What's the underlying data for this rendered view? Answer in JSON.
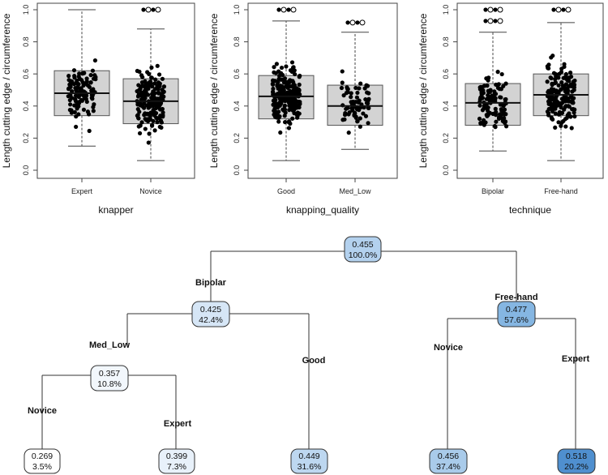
{
  "chart_data": [
    {
      "type": "boxplot",
      "id": "knapper",
      "xlabel": "knapper",
      "ylabel": "Length cutting edge / circumference",
      "ylim": [
        0,
        1
      ],
      "yticks": [
        "0.0",
        "0.2",
        "0.4",
        "0.6",
        "0.8",
        "1.0"
      ],
      "categories": [
        "Expert",
        "Novice"
      ],
      "boxes": [
        {
          "name": "Expert",
          "min": 0.15,
          "q1": 0.34,
          "median": 0.48,
          "q3": 0.62,
          "max": 1.0,
          "outliers": [],
          "n": 110
        },
        {
          "name": "Novice",
          "min": 0.06,
          "q1": 0.29,
          "median": 0.43,
          "q3": 0.57,
          "max": 0.88,
          "outliers": [
            1.0,
            1.0
          ],
          "n": 180
        }
      ]
    },
    {
      "type": "boxplot",
      "id": "knapping_quality",
      "xlabel": "knapping_quality",
      "ylabel": "Length cutting edge / circumference",
      "ylim": [
        0,
        1
      ],
      "yticks": [
        "0.0",
        "0.2",
        "0.4",
        "0.6",
        "0.8",
        "1.0"
      ],
      "categories": [
        "Good",
        "Med_Low"
      ],
      "boxes": [
        {
          "name": "Good",
          "min": 0.06,
          "q1": 0.32,
          "median": 0.46,
          "q3": 0.59,
          "max": 0.93,
          "outliers": [
            1.0,
            1.0
          ],
          "n": 220
        },
        {
          "name": "Med_Low",
          "min": 0.13,
          "q1": 0.28,
          "median": 0.4,
          "q3": 0.53,
          "max": 0.86,
          "outliers": [
            0.92,
            0.92
          ],
          "n": 75
        }
      ]
    },
    {
      "type": "boxplot",
      "id": "technique",
      "xlabel": "technique",
      "ylabel": "Length cutting edge / circumference",
      "ylim": [
        0,
        1
      ],
      "yticks": [
        "0.0",
        "0.2",
        "0.4",
        "0.6",
        "0.8",
        "1.0"
      ],
      "categories": [
        "Bipolar",
        "Free-hand"
      ],
      "boxes": [
        {
          "name": "Bipolar",
          "min": 0.12,
          "q1": 0.28,
          "median": 0.42,
          "q3": 0.54,
          "max": 0.86,
          "outliers": [
            0.93,
            0.93,
            1.0,
            1.0
          ],
          "n": 110
        },
        {
          "name": "Free-hand",
          "min": 0.06,
          "q1": 0.34,
          "median": 0.47,
          "q3": 0.6,
          "max": 0.92,
          "outliers": [
            1.0,
            1.0
          ],
          "n": 170
        }
      ]
    },
    {
      "type": "tree",
      "id": "regression-tree",
      "nodes": [
        {
          "id": "root",
          "value": "0.455",
          "pct": "100.0%",
          "fill": "#b3d1ee"
        },
        {
          "id": "n_bipolar",
          "value": "0.425",
          "pct": "42.4%",
          "fill": "#d6e6f6"
        },
        {
          "id": "n_freehand",
          "value": "0.477",
          "pct": "57.6%",
          "fill": "#85b6e2"
        },
        {
          "id": "n_medlow",
          "value": "0.357",
          "pct": "10.8%",
          "fill": "#f2f7fc"
        },
        {
          "id": "leaf_novice_a",
          "value": "0.269",
          "pct": "3.5%",
          "fill": "#ffffff"
        },
        {
          "id": "leaf_expert_a",
          "value": "0.399",
          "pct": "7.3%",
          "fill": "#e8f1fa"
        },
        {
          "id": "leaf_good",
          "value": "0.449",
          "pct": "31.6%",
          "fill": "#bdd7f0"
        },
        {
          "id": "leaf_novice_b",
          "value": "0.456",
          "pct": "37.4%",
          "fill": "#a9cbea"
        },
        {
          "id": "leaf_expert_b",
          "value": "0.518",
          "pct": "20.2%",
          "fill": "#4f8fcf"
        }
      ],
      "split_labels": {
        "bipolar": "Bipolar",
        "freehand": "Free-hand",
        "medlow": "Med_Low",
        "good": "Good",
        "novice_a": "Novice",
        "expert_a": "Expert",
        "novice_b": "Novice",
        "expert_b": "Expert"
      }
    }
  ]
}
